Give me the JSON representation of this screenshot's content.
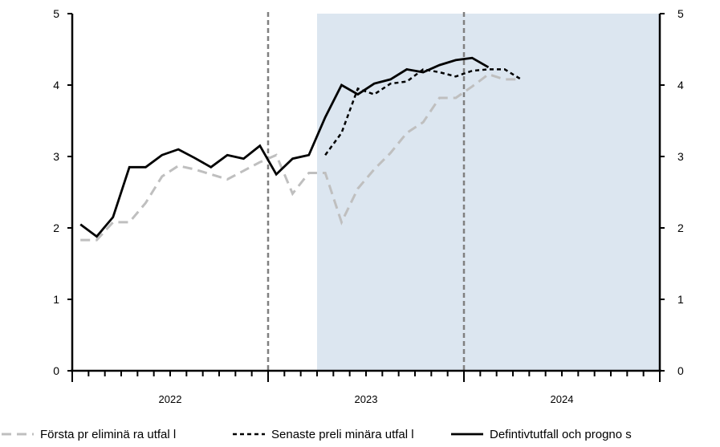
{
  "chart_data": {
    "type": "line",
    "x_labels": [
      "2022",
      "2023",
      "2024"
    ],
    "ylim": [
      0,
      5
    ],
    "yticks": [
      "0",
      "1",
      "2",
      "3",
      "4",
      "5"
    ],
    "right_axis_ticks": [
      "0",
      "1",
      "2",
      "3",
      "4",
      "5"
    ],
    "months_per_year": 12,
    "shaded_region": {
      "from_month": 15,
      "to_month": 36,
      "color": "#dce6f0"
    },
    "vertical_lines": [
      12,
      24
    ],
    "series": [
      {
        "name": "Första pr eliminä ra utfal l",
        "color": "#bfbfbf",
        "dash": "12,7",
        "width": 3,
        "values": [
          1.83,
          1.83,
          2.08,
          2.08,
          2.35,
          2.72,
          2.87,
          2.82,
          2.75,
          2.68,
          2.8,
          2.92,
          3.02,
          2.48,
          2.77,
          2.77,
          2.08,
          2.55,
          2.82,
          3.05,
          3.33,
          3.48,
          3.82,
          3.82,
          3.98,
          4.15,
          4.08,
          4.08
        ]
      },
      {
        "name": "Senaste preli minära utfal l",
        "color": "#000000",
        "dash": "5,4",
        "width": 2.5,
        "values": [
          null,
          null,
          null,
          null,
          null,
          null,
          null,
          null,
          null,
          null,
          null,
          null,
          null,
          null,
          null,
          3.02,
          3.33,
          3.95,
          3.87,
          4.02,
          4.05,
          4.22,
          4.18,
          4.12,
          4.2,
          4.22,
          4.22,
          4.08
        ]
      },
      {
        "name": "Defintivtutfall och progno s",
        "color": "#000000",
        "dash": "",
        "width": 2.8,
        "values": [
          2.05,
          1.88,
          2.15,
          2.85,
          2.85,
          3.02,
          3.1,
          2.98,
          2.85,
          3.02,
          2.97,
          3.15,
          2.75,
          2.97,
          3.02,
          3.55,
          4.0,
          3.87,
          4.02,
          4.08,
          4.22,
          4.18,
          4.28,
          4.35,
          4.38,
          4.25
        ]
      }
    ]
  }
}
